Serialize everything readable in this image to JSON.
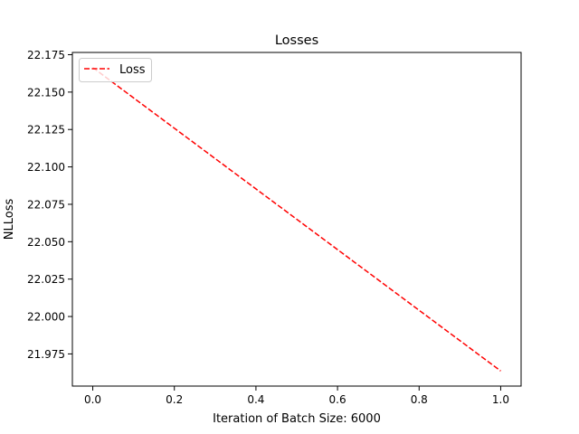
{
  "chart_data": {
    "type": "line",
    "title": "Losses",
    "xlabel": "Iteration of Batch Size: 6000",
    "ylabel": "NLLoss",
    "xlim": [
      -0.05,
      1.05
    ],
    "ylim": [
      21.9535,
      22.1765
    ],
    "x_ticks": [
      0.0,
      0.2,
      0.4,
      0.6,
      0.8,
      1.0
    ],
    "x_tick_labels": [
      "0.0",
      "0.2",
      "0.4",
      "0.6",
      "0.8",
      "1.0"
    ],
    "y_ticks": [
      21.975,
      22.0,
      22.025,
      22.05,
      22.075,
      22.1,
      22.125,
      22.15,
      22.175
    ],
    "y_tick_labels": [
      "21.975",
      "22.000",
      "22.025",
      "22.050",
      "22.075",
      "22.100",
      "22.125",
      "22.150",
      "22.175"
    ],
    "grid": false,
    "legend_position": "top-left",
    "series": [
      {
        "name": "Loss",
        "color": "#ff0000",
        "line_style": "dashed",
        "x": [
          0.0,
          1.0
        ],
        "y": [
          22.1664,
          21.9636
        ]
      }
    ]
  }
}
